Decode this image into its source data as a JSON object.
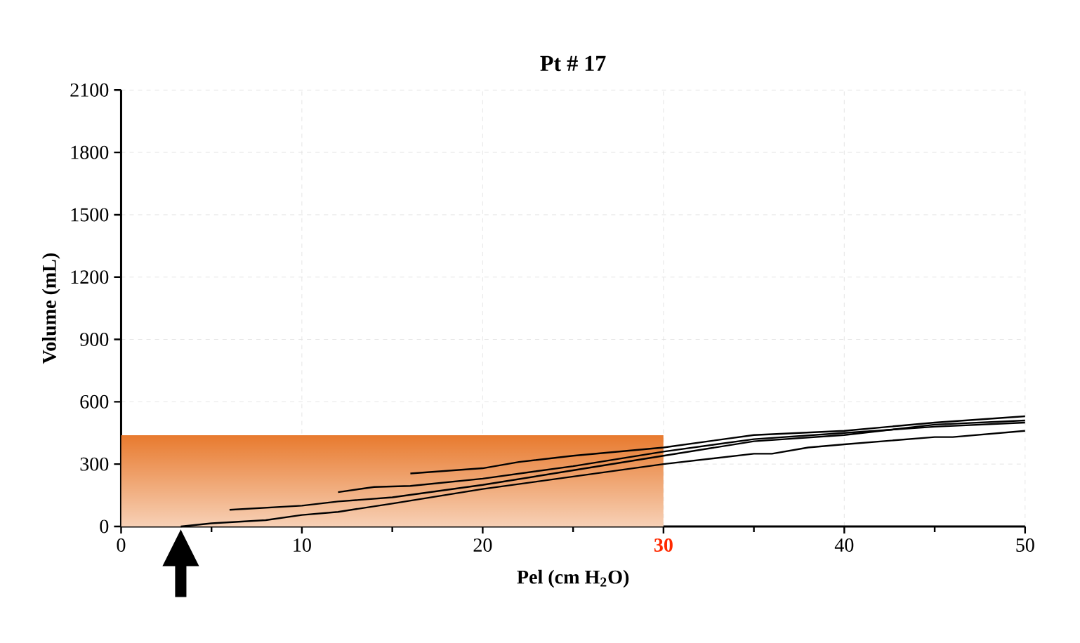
{
  "chart_data": {
    "type": "line",
    "title": "Pt # 17",
    "xlabel": "Pel  (cm H$_{2}$O)",
    "ylabel": "Volume  (mL)",
    "xlim": [
      0,
      50
    ],
    "xticks": [
      0,
      10,
      20,
      30,
      40,
      50
    ],
    "ylim": [
      0,
      2100
    ],
    "yticks": [
      0,
      300,
      600,
      900,
      1200,
      1500,
      1800,
      2100
    ],
    "grid": true,
    "marker": "none",
    "line_style": "solid",
    "series": [
      {
        "type": "area",
        "color": "#e87a2e",
        "x": [
          0,
          30
        ],
        "values": [
          440,
          440
        ]
      },
      {
        "color": "#000000",
        "x": [
          3.3,
          5,
          8,
          10,
          12,
          15,
          20,
          25,
          30,
          35,
          36,
          38,
          40,
          45,
          46,
          50
        ],
        "values": [
          0,
          15,
          30,
          55,
          70,
          110,
          180,
          240,
          300,
          350,
          350,
          380,
          395,
          430,
          430,
          460
        ]
      },
      {
        "color": "#000000",
        "x": [
          6,
          10,
          12,
          15,
          20,
          25,
          30,
          35,
          40,
          45,
          50
        ],
        "values": [
          80,
          100,
          120,
          140,
          200,
          270,
          340,
          410,
          440,
          490,
          510
        ]
      },
      {
        "color": "#000000",
        "x": [
          12,
          14,
          16,
          20,
          25,
          30,
          35,
          40,
          45,
          50
        ],
        "values": [
          165,
          190,
          195,
          230,
          290,
          360,
          420,
          450,
          480,
          500
        ]
      },
      {
        "color": "#000000",
        "x": [
          16,
          20,
          22,
          25,
          30,
          35,
          40,
          45,
          50
        ],
        "values": [
          255,
          280,
          310,
          340,
          380,
          440,
          460,
          500,
          530
        ]
      }
    ]
  }
}
